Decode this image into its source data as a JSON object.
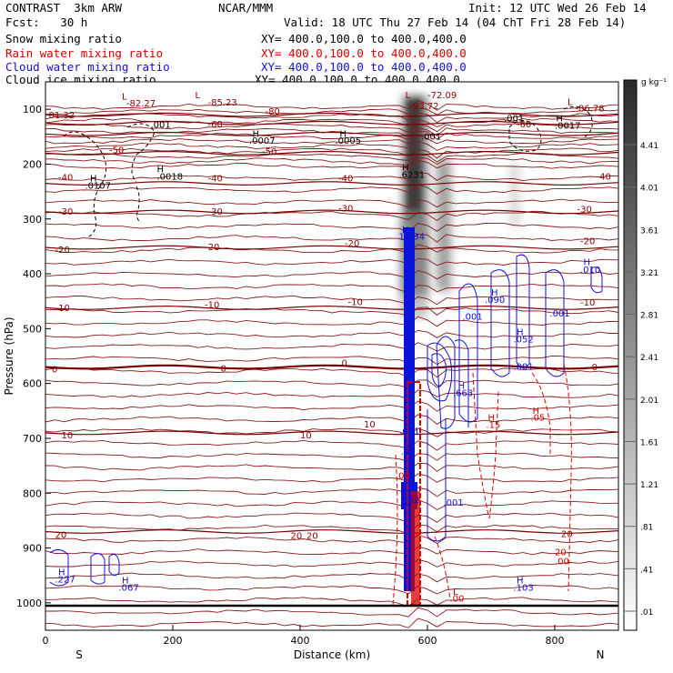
{
  "header": {
    "project": "CONTRAST",
    "model": "3km ARW",
    "org": "NCAR/MMM",
    "init": "Init: 12 UTC Wed 26 Feb 14",
    "fcst_label": "Fcst:",
    "fcst_value": "30 h",
    "valid": "Valid: 18 UTC Thu 27 Feb 14 (04 ChT Fri 28 Feb 14)"
  },
  "legend": [
    {
      "label": "Snow mixing ratio",
      "xy": "XY= 400.0,100.0 to 400.0,400.0",
      "color": "#000000"
    },
    {
      "label": "Rain water mixing ratio",
      "xy": "XY= 400.0,100.0 to 400.0,400.0",
      "color": "#d40000"
    },
    {
      "label": "Cloud water mixing ratio",
      "xy": "XY= 400.0,100.0 to 400.0,400.0",
      "color": "#1010d8"
    },
    {
      "label": "Cloud ice mixing ratio",
      "xy": "XY= 400.0,100.0 to 400.0,400.0",
      "color": "#000000"
    }
  ],
  "chart_data": {
    "type": "cross-section",
    "xlabel": "Distance (km)",
    "ylabel": "Pressure (hPa)",
    "xlim": [
      0,
      900
    ],
    "ylim": [
      1050,
      50
    ],
    "x_ticks": [
      0,
      200,
      400,
      600,
      800
    ],
    "y_ticks": [
      100,
      200,
      300,
      400,
      500,
      600,
      700,
      800,
      900,
      1000
    ],
    "x_end_labels": {
      "left": "S",
      "right": "N"
    },
    "colorbar": {
      "unit": "g kg⁻¹",
      "ticks": [
        "4.41",
        "4.01",
        "3.61",
        "3.21",
        "2.81",
        "2.41",
        "2.01",
        "1.61",
        "1.21",
        ".81",
        ".41",
        ".01"
      ]
    },
    "temperature_contours": [
      {
        "value": -80,
        "p": 110
      },
      {
        "value": -70,
        "p": 125
      },
      {
        "value": -60,
        "p": 145
      },
      {
        "value": -50,
        "p": 180
      },
      {
        "value": -40,
        "p": 235
      },
      {
        "value": -30,
        "p": 287
      },
      {
        "value": -20,
        "p": 352
      },
      {
        "value": -10,
        "p": 462
      },
      {
        "value": 0,
        "p": 570
      },
      {
        "value": 10,
        "p": 690
      },
      {
        "value": 20,
        "p": 870
      }
    ],
    "labels": [
      {
        "t": "L",
        "x": 120,
        "p": 82,
        "c": "dark"
      },
      {
        "t": "-82.27",
        "x": 127,
        "p": 95,
        "c": "dark"
      },
      {
        "t": "L",
        "x": 235,
        "p": 80,
        "c": "dark"
      },
      {
        "t": "-85.23",
        "x": 255,
        "p": 93,
        "c": "dark"
      },
      {
        "t": "L",
        "x": 565,
        "p": 80,
        "c": "dark"
      },
      {
        "t": "-72.09",
        "x": 600,
        "p": 80,
        "c": "dark"
      },
      {
        "t": "L",
        "x": 820,
        "p": 92,
        "c": "dark"
      },
      {
        "t": "-86.78",
        "x": 832,
        "p": 104,
        "c": "dark"
      },
      {
        "t": "81.32",
        "x": 5,
        "p": 116,
        "c": "dark"
      },
      {
        "t": "-80",
        "x": 345,
        "p": 110,
        "c": "dark"
      },
      {
        "t": "-60",
        "x": 255,
        "p": 133,
        "c": "dark"
      },
      {
        "t": "-60",
        "x": 740,
        "p": 133,
        "c": "dark"
      },
      {
        "t": "-50",
        "x": 100,
        "p": 180,
        "c": "dark"
      },
      {
        "t": "-50",
        "x": 340,
        "p": 183,
        "c": "dark"
      },
      {
        "t": "-40",
        "x": 20,
        "p": 230,
        "c": "dark"
      },
      {
        "t": "-40",
        "x": 255,
        "p": 232,
        "c": "dark"
      },
      {
        "t": "-40",
        "x": 460,
        "p": 232,
        "c": "dark"
      },
      {
        "t": "-40",
        "x": 865,
        "p": 228,
        "c": "dark"
      },
      {
        "t": "-30",
        "x": 20,
        "p": 292,
        "c": "dark"
      },
      {
        "t": "-30",
        "x": 255,
        "p": 292,
        "c": "dark"
      },
      {
        "t": "-30",
        "x": 460,
        "p": 286,
        "c": "dark"
      },
      {
        "t": "-30",
        "x": 835,
        "p": 288,
        "c": "dark"
      },
      {
        "t": "-20",
        "x": 15,
        "p": 362,
        "c": "dark"
      },
      {
        "t": "-20",
        "x": 250,
        "p": 357,
        "c": "dark"
      },
      {
        "t": "-20",
        "x": 470,
        "p": 350,
        "c": "dark"
      },
      {
        "t": "-20",
        "x": 840,
        "p": 346,
        "c": "dark"
      },
      {
        "t": "-10",
        "x": 15,
        "p": 468,
        "c": "dark"
      },
      {
        "t": "-10",
        "x": 250,
        "p": 462,
        "c": "dark"
      },
      {
        "t": "-10",
        "x": 475,
        "p": 457,
        "c": "dark"
      },
      {
        "t": "-10",
        "x": 840,
        "p": 458,
        "c": "dark"
      },
      {
        "t": "0",
        "x": 10,
        "p": 580,
        "c": "dark"
      },
      {
        "t": "0",
        "x": 275,
        "p": 578,
        "c": "dark"
      },
      {
        "t": "0",
        "x": 465,
        "p": 568,
        "c": "dark"
      },
      {
        "t": "0",
        "x": 858,
        "p": 576,
        "c": "dark"
      },
      {
        "t": "10",
        "x": 25,
        "p": 700,
        "c": "dark"
      },
      {
        "t": "10",
        "x": 400,
        "p": 700,
        "c": "dark"
      },
      {
        "t": "10",
        "x": 500,
        "p": 680,
        "c": "dark"
      },
      {
        "t": "20",
        "x": 15,
        "p": 882,
        "c": "dark"
      },
      {
        "t": "20",
        "x": 410,
        "p": 883,
        "c": "dark"
      },
      {
        "t": "20",
        "x": 385,
        "p": 883,
        "c": "dark"
      },
      {
        "t": "20",
        "x": 810,
        "p": 880,
        "c": "dark"
      },
      {
        "t": ".001",
        "x": 165,
        "p": 134,
        "c": "black"
      },
      {
        "t": "H",
        "x": 325,
        "p": 150,
        "c": "black"
      },
      {
        "t": ".0007",
        "x": 320,
        "p": 163,
        "c": "black"
      },
      {
        "t": "H",
        "x": 462,
        "p": 150,
        "c": "black"
      },
      {
        "t": ".0005",
        "x": 455,
        "p": 163,
        "c": "black"
      },
      {
        "t": ".001",
        "x": 590,
        "p": 155,
        "c": "black"
      },
      {
        "t": ".001",
        "x": 720,
        "p": 122,
        "c": "black"
      },
      {
        "t": "H",
        "x": 802,
        "p": 122,
        "c": "black"
      },
      {
        "t": ".0017",
        "x": 800,
        "p": 135,
        "c": "black"
      },
      {
        "t": "H",
        "x": 175,
        "p": 215,
        "c": "black"
      },
      {
        "t": ".0018",
        "x": 175,
        "p": 228,
        "c": "black"
      },
      {
        "t": "H",
        "x": 70,
        "p": 232,
        "c": "black"
      },
      {
        "t": ".0107",
        "x": 62,
        "p": 245,
        "c": "black"
      },
      {
        "t": "H",
        "x": 560,
        "p": 212,
        "c": "black"
      },
      {
        "t": ".6231",
        "x": 555,
        "p": 225,
        "c": "black"
      },
      {
        "t": "-93.72",
        "x": 572,
        "p": 100,
        "c": "dark"
      },
      {
        "t": "H",
        "x": 560,
        "p": 325,
        "c": "blue"
      },
      {
        "t": "1.034",
        "x": 555,
        "p": 338,
        "c": "blue"
      },
      {
        "t": "H",
        "x": 845,
        "p": 384,
        "c": "blue"
      },
      {
        "t": ".010",
        "x": 840,
        "p": 398,
        "c": "blue"
      },
      {
        "t": "H",
        "x": 700,
        "p": 440,
        "c": "blue"
      },
      {
        "t": ".090",
        "x": 690,
        "p": 453,
        "c": "blue"
      },
      {
        "t": ".001",
        "x": 655,
        "p": 484,
        "c": "blue"
      },
      {
        "t": ".001",
        "x": 792,
        "p": 478,
        "c": "blue"
      },
      {
        "t": "H",
        "x": 740,
        "p": 512,
        "c": "blue"
      },
      {
        "t": ".052",
        "x": 735,
        "p": 525,
        "c": "blue"
      },
      {
        "t": ".001",
        "x": 735,
        "p": 575,
        "c": "blue"
      },
      {
        "t": "H",
        "x": 648,
        "p": 610,
        "c": "blue"
      },
      {
        "t": ".663",
        "x": 640,
        "p": 623,
        "c": "blue"
      },
      {
        "t": "H",
        "x": 695,
        "p": 668,
        "c": "red"
      },
      {
        "t": ".15",
        "x": 692,
        "p": 681,
        "c": "red"
      },
      {
        "t": "H",
        "x": 765,
        "p": 655,
        "c": "red"
      },
      {
        "t": ".05",
        "x": 762,
        "p": 668,
        "c": "red"
      },
      {
        "t": ".031",
        "x": 556,
        "p": 693,
        "c": "blue"
      },
      {
        "t": ".40",
        "x": 558,
        "p": 730,
        "c": "blue"
      },
      {
        "t": ".00",
        "x": 550,
        "p": 774,
        "c": "red"
      },
      {
        "t": ".52",
        "x": 565,
        "p": 818,
        "c": "blue"
      },
      {
        "t": ".001",
        "x": 625,
        "p": 823,
        "c": "blue"
      },
      {
        "t": "H",
        "x": 20,
        "p": 950,
        "c": "blue"
      },
      {
        "t": ".227",
        "x": 15,
        "p": 963,
        "c": "blue"
      },
      {
        "t": "H",
        "x": 120,
        "p": 965,
        "c": "blue"
      },
      {
        "t": ".067",
        "x": 115,
        "p": 978,
        "c": "blue"
      },
      {
        "t": "H",
        "x": 740,
        "p": 965,
        "c": "blue"
      },
      {
        "t": ".103",
        "x": 735,
        "p": 978,
        "c": "blue"
      },
      {
        "t": "20",
        "x": 800,
        "p": 913,
        "c": "red"
      },
      {
        "t": ".00",
        "x": 800,
        "p": 930,
        "c": "red"
      },
      {
        "t": "L",
        "x": 640,
        "p": 985,
        "c": "red"
      },
      {
        "t": ".00",
        "x": 635,
        "p": 998,
        "c": "red"
      }
    ]
  }
}
